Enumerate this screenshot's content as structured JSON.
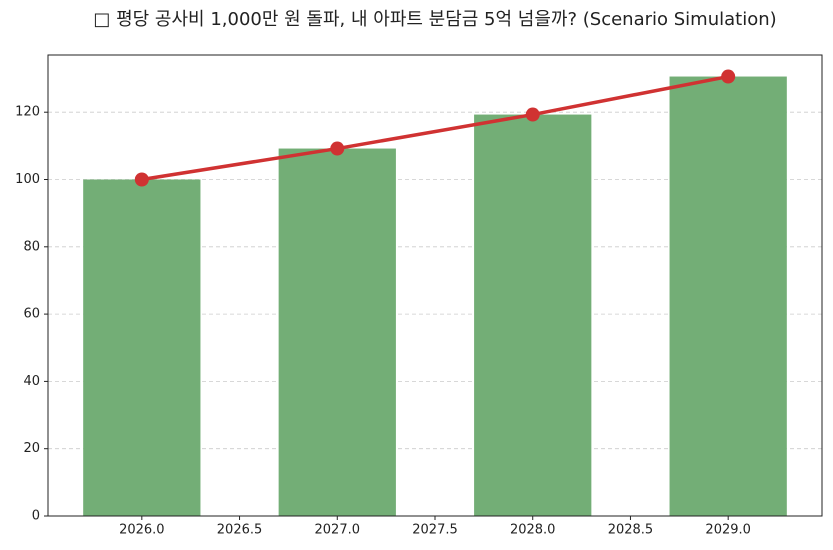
{
  "chart_data": {
    "type": "bar_line",
    "title": "□ 평당 공사비 1,000만 원 돌파, 내 아파트 분담금 5억 넘을까? (Scenario Simulation)",
    "x": [
      2026,
      2027,
      2028,
      2029
    ],
    "values": [
      100,
      109.2,
      119.3,
      130.6
    ],
    "color": "#73ae76",
    "line_color": "#d03232",
    "xlim": [
      2025.52,
      2029.48
    ],
    "xticks": [
      {
        "value": 2026,
        "label": "2026.0"
      },
      {
        "value": 2026.5,
        "label": "2026.5"
      },
      {
        "value": 2027,
        "label": "2027.0"
      },
      {
        "value": 2027.5,
        "label": "2027.5"
      },
      {
        "value": 2028,
        "label": "2028.0"
      },
      {
        "value": 2028.5,
        "label": "2028.5"
      },
      {
        "value": 2029,
        "label": "2029.0"
      }
    ],
    "ylim": [
      0,
      137
    ],
    "yticks": [
      0,
      20,
      40,
      60,
      80,
      100,
      120
    ],
    "grid": true
  }
}
